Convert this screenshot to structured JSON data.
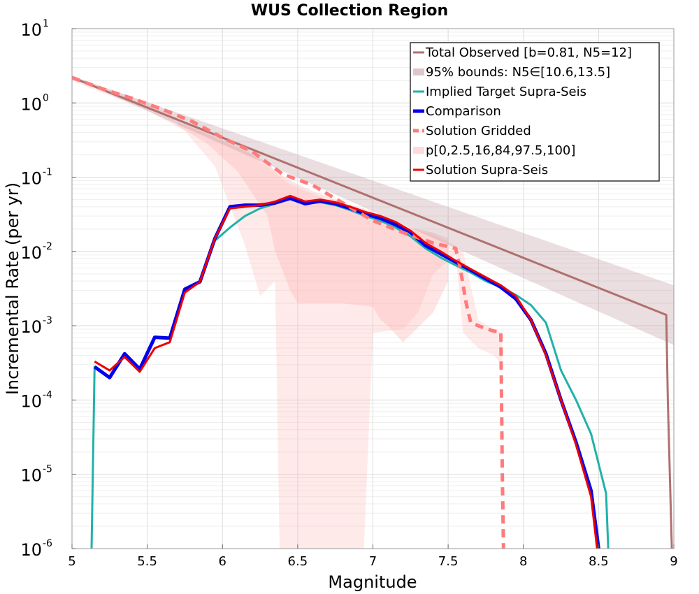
{
  "chart_data": {
    "type": "line",
    "title": "WUS Collection Region",
    "xlabel": "Magnitude",
    "ylabel": "Incremental Rate (per yr)",
    "xlim": [
      5,
      9
    ],
    "ylim": [
      1e-06,
      10
    ],
    "yscale": "log",
    "grid": true,
    "legend_position": "top-right",
    "x_ticks": [
      "5",
      "5.5",
      "6",
      "6.5",
      "7",
      "7.5",
      "8",
      "8.5",
      "9"
    ],
    "y_ticks": [
      {
        "base": "10",
        "exp": "-6"
      },
      {
        "base": "10",
        "exp": "-5"
      },
      {
        "base": "10",
        "exp": "-4"
      },
      {
        "base": "10",
        "exp": "-3"
      },
      {
        "base": "10",
        "exp": "-2"
      },
      {
        "base": "10",
        "exp": "-1"
      },
      {
        "base": "10",
        "exp": "0"
      },
      {
        "base": "10",
        "exp": "1"
      }
    ],
    "bands": [
      {
        "name": "95% bounds: N5∈[10.6,13.5]",
        "color": "#b48a8f",
        "opacity": 0.28,
        "x": [
          5,
          9
        ],
        "lower": [
          2.2,
          0.00055
        ],
        "upper": [
          2.3,
          0.0035
        ]
      }
    ],
    "gridded_bands": [
      {
        "color": "#ffb3b3",
        "opacity": 0.28,
        "x": [
          5.0,
          5.5,
          5.75,
          5.95,
          6.15,
          6.25,
          6.35,
          6.38,
          6.45,
          6.6,
          6.75,
          6.94,
          7.0,
          7.2,
          7.3,
          7.4,
          7.55,
          7.6,
          7.7,
          7.8,
          7.86
        ],
        "lower": [
          2.0,
          0.8,
          0.42,
          0.14,
          0.012,
          0.0025,
          0.004,
          1e-06,
          1e-06,
          1e-06,
          1e-06,
          1e-06,
          0.0008,
          0.0009,
          0.0015,
          0.005,
          0.009,
          0.0008,
          0.0005,
          0.0004,
          0.0003
        ],
        "upper": [
          2.3,
          1.0,
          0.55,
          0.38,
          0.25,
          0.16,
          0.12,
          0.1,
          0.08,
          0.06,
          0.045,
          0.035,
          0.03,
          0.022,
          0.019,
          0.017,
          0.012,
          0.01,
          0.0012,
          0.0009,
          0.0008
        ]
      },
      {
        "color": "#ffb3b3",
        "opacity": 0.35,
        "x": [
          5.7,
          5.9,
          6.1,
          6.2,
          6.3,
          6.35,
          6.45,
          6.5,
          6.6,
          6.7,
          6.8,
          7.0,
          7.05,
          7.1,
          7.2,
          7.4,
          7.5
        ],
        "lower": [
          0.5,
          0.28,
          0.12,
          0.06,
          0.03,
          0.01,
          0.003,
          0.002,
          0.002,
          0.002,
          0.002,
          0.0018,
          0.0012,
          0.001,
          0.0006,
          0.0015,
          0.004
        ],
        "upper": [
          0.55,
          0.38,
          0.25,
          0.2,
          0.16,
          0.12,
          0.09,
          0.08,
          0.065,
          0.055,
          0.045,
          0.035,
          0.03,
          0.028,
          0.022,
          0.018,
          0.015
        ]
      }
    ],
    "series": [
      {
        "name": "Total Observed [b=0.81, N5=12]",
        "color": "#b07070",
        "width": 3,
        "dash": "",
        "x": [
          5.0,
          8.95,
          8.96,
          9.0
        ],
        "y": [
          2.2,
          0.0014,
          0.0001,
          1e-07
        ]
      },
      {
        "name": "Implied Target Supra-Seis",
        "color": "#20b2aa",
        "width": 3,
        "dash": "",
        "x": [
          5.13,
          5.15,
          5.25,
          5.35,
          5.45,
          5.55,
          5.65,
          5.75,
          5.85,
          5.95,
          6.05,
          6.15,
          6.25,
          6.35,
          6.45,
          6.55,
          6.65,
          6.75,
          6.85,
          6.95,
          7.05,
          7.15,
          7.25,
          7.35,
          7.45,
          7.55,
          7.65,
          7.75,
          7.85,
          7.95,
          8.05,
          8.15,
          8.25,
          8.35,
          8.45,
          8.55,
          8.57
        ],
        "y": [
          1e-06,
          0.00028,
          0.0002,
          0.00042,
          0.00026,
          0.0007,
          0.00068,
          0.0031,
          0.0039,
          0.014,
          0.021,
          0.03,
          0.038,
          0.044,
          0.052,
          0.044,
          0.046,
          0.042,
          0.036,
          0.03,
          0.026,
          0.021,
          0.016,
          0.011,
          0.0083,
          0.0065,
          0.0052,
          0.004,
          0.0033,
          0.0026,
          0.0019,
          0.0011,
          0.00025,
          0.0001,
          3.5e-05,
          5.5e-06,
          5e-07
        ]
      },
      {
        "name": "Comparison",
        "color": "#0000ee",
        "width": 5,
        "dash": "",
        "x": [
          5.15,
          5.25,
          5.35,
          5.45,
          5.55,
          5.65,
          5.75,
          5.85,
          5.95,
          6.05,
          6.15,
          6.25,
          6.35,
          6.45,
          6.55,
          6.65,
          6.75,
          6.85,
          6.95,
          7.05,
          7.15,
          7.25,
          7.35,
          7.45,
          7.55,
          7.65,
          7.75,
          7.85,
          7.95,
          8.05,
          8.15,
          8.25,
          8.35,
          8.45,
          8.5,
          8.52
        ],
        "y": [
          0.00028,
          0.0002,
          0.00042,
          0.00026,
          0.0007,
          0.00068,
          0.0031,
          0.0039,
          0.015,
          0.04,
          0.042,
          0.042,
          0.045,
          0.052,
          0.044,
          0.048,
          0.044,
          0.038,
          0.032,
          0.028,
          0.023,
          0.018,
          0.012,
          0.0093,
          0.0072,
          0.0056,
          0.0043,
          0.0033,
          0.0023,
          0.0012,
          0.00042,
          0.0001,
          2.7e-05,
          6e-06,
          1e-06,
          5e-07
        ]
      },
      {
        "name": "Solution Gridded",
        "color": "#ff7b7b",
        "width": 5,
        "dash": "12 8",
        "x": [
          5.0,
          5.2,
          5.4,
          5.6,
          5.8,
          6.0,
          6.2,
          6.4,
          6.6,
          6.8,
          7.0,
          7.2,
          7.4,
          7.55,
          7.58,
          7.62,
          7.65,
          7.7,
          7.8,
          7.85,
          7.86,
          7.87
        ],
        "y": [
          2.2,
          1.55,
          1.15,
          0.82,
          0.56,
          0.34,
          0.22,
          0.11,
          0.078,
          0.045,
          0.026,
          0.018,
          0.013,
          0.011,
          0.006,
          0.002,
          0.0011,
          0.001,
          0.00085,
          0.00082,
          1e-05,
          5e-07
        ]
      },
      {
        "name": "Solution Supra-Seis",
        "color": "#ee0000",
        "width": 3,
        "dash": "",
        "x": [
          5.15,
          5.25,
          5.35,
          5.45,
          5.55,
          5.65,
          5.75,
          5.85,
          5.95,
          6.05,
          6.15,
          6.25,
          6.35,
          6.45,
          6.55,
          6.65,
          6.75,
          6.85,
          6.95,
          7.05,
          7.15,
          7.25,
          7.35,
          7.45,
          7.55,
          7.65,
          7.75,
          7.85,
          7.95,
          8.05,
          8.15,
          8.25,
          8.35,
          8.45,
          8.49,
          8.5
        ],
        "y": [
          0.00033,
          0.00025,
          0.00038,
          0.00024,
          0.0005,
          0.0006,
          0.0028,
          0.0039,
          0.015,
          0.038,
          0.04,
          0.042,
          0.047,
          0.056,
          0.047,
          0.05,
          0.046,
          0.04,
          0.034,
          0.03,
          0.025,
          0.019,
          0.013,
          0.01,
          0.0075,
          0.0058,
          0.0045,
          0.0035,
          0.0025,
          0.0012,
          0.0004,
          0.0001,
          2.5e-05,
          5e-06,
          1e-06,
          5e-07
        ]
      }
    ],
    "legend": [
      {
        "label": "Total Observed [b=0.81, N5=12]",
        "kind": "line",
        "color": "#b07070",
        "width": 3,
        "dash": ""
      },
      {
        "label": "95% bounds: N5∈[10.6,13.5]",
        "kind": "patch",
        "color": "#dcc8ca",
        "width": 8,
        "dash": ""
      },
      {
        "label": "Implied Target Supra-Seis",
        "kind": "line",
        "color": "#20b2aa",
        "width": 3,
        "dash": ""
      },
      {
        "label": "Comparison",
        "kind": "line",
        "color": "#0000ee",
        "width": 5,
        "dash": ""
      },
      {
        "label": "Solution Gridded",
        "kind": "line",
        "color": "#ff7b7b",
        "width": 5,
        "dash": "8 5"
      },
      {
        "label": "p[0,2.5,16,84,97.5,100]",
        "kind": "patch",
        "color": "#ffdada",
        "width": 8,
        "dash": ""
      },
      {
        "label": "Solution Supra-Seis",
        "kind": "line",
        "color": "#ee0000",
        "width": 3,
        "dash": ""
      }
    ]
  }
}
